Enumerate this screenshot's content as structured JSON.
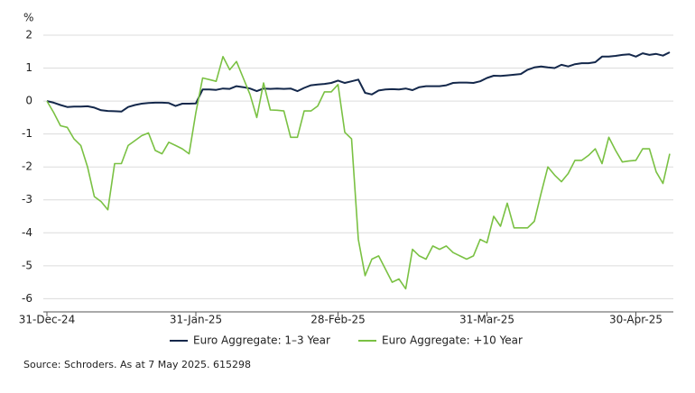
{
  "chart_data": {
    "type": "line",
    "y_unit_label": "%",
    "categories": [
      "31-Dec-24",
      null,
      null,
      null,
      null,
      null,
      null,
      null,
      null,
      null,
      null,
      null,
      null,
      null,
      null,
      null,
      null,
      null,
      null,
      null,
      null,
      null,
      "31-Jan-25",
      null,
      null,
      null,
      null,
      null,
      null,
      null,
      null,
      null,
      null,
      null,
      null,
      null,
      null,
      null,
      null,
      null,
      null,
      null,
      null,
      "28-Feb-25",
      null,
      null,
      null,
      null,
      null,
      null,
      null,
      null,
      null,
      null,
      null,
      null,
      null,
      null,
      null,
      null,
      null,
      null,
      null,
      null,
      null,
      "31-Mar-25",
      null,
      null,
      null,
      null,
      null,
      null,
      null,
      null,
      null,
      null,
      null,
      null,
      null,
      null,
      null,
      null,
      null,
      null,
      null,
      null,
      null,
      "30-Apr-25",
      null,
      null,
      null,
      null,
      null
    ],
    "series": [
      {
        "name": "Euro Aggregate: 1–3 Year",
        "color": "#14284b",
        "values": [
          0,
          -0.05,
          -0.12,
          -0.18,
          -0.17,
          -0.17,
          -0.16,
          -0.2,
          -0.28,
          -0.3,
          -0.31,
          -0.32,
          -0.18,
          -0.12,
          -0.08,
          -0.06,
          -0.05,
          -0.05,
          -0.06,
          -0.15,
          -0.08,
          -0.08,
          -0.07,
          0.35,
          0.35,
          0.34,
          0.38,
          0.37,
          0.45,
          0.42,
          0.38,
          0.3,
          0.38,
          0.37,
          0.38,
          0.37,
          0.38,
          0.3,
          0.4,
          0.48,
          0.5,
          0.52,
          0.55,
          0.62,
          0.55,
          0.6,
          0.65,
          0.25,
          0.2,
          0.32,
          0.35,
          0.36,
          0.35,
          0.38,
          0.33,
          0.42,
          0.45,
          0.45,
          0.45,
          0.48,
          0.55,
          0.56,
          0.56,
          0.55,
          0.6,
          0.7,
          0.77,
          0.76,
          0.78,
          0.8,
          0.82,
          0.95,
          1.02,
          1.05,
          1.02,
          1.0,
          1.1,
          1.05,
          1.12,
          1.15,
          1.15,
          1.18,
          1.35,
          1.35,
          1.37,
          1.4,
          1.42,
          1.35,
          1.45,
          1.4,
          1.43,
          1.38,
          1.48
        ]
      },
      {
        "name": "Euro Aggregate: +10 Year",
        "color": "#7ac143",
        "values": [
          0,
          -0.35,
          -0.75,
          -0.8,
          -1.15,
          -1.35,
          -2.0,
          -2.9,
          -3.05,
          -3.3,
          -1.9,
          -1.9,
          -1.35,
          -1.2,
          -1.05,
          -0.97,
          -1.5,
          -1.6,
          -1.25,
          -1.35,
          -1.45,
          -1.6,
          -0.35,
          0.7,
          0.65,
          0.6,
          1.35,
          0.95,
          1.2,
          0.7,
          0.2,
          -0.5,
          0.55,
          -0.27,
          -0.28,
          -0.3,
          -1.1,
          -1.1,
          -0.3,
          -0.3,
          -0.15,
          0.28,
          0.28,
          0.5,
          -0.95,
          -1.15,
          -4.2,
          -5.3,
          -4.8,
          -4.7,
          -5.1,
          -5.5,
          -5.4,
          -5.7,
          -4.5,
          -4.7,
          -4.8,
          -4.4,
          -4.5,
          -4.4,
          -4.6,
          -4.7,
          -4.8,
          -4.7,
          -4.2,
          -4.3,
          -3.5,
          -3.8,
          -3.1,
          -3.85,
          -3.85,
          -3.85,
          -3.65,
          -2.8,
          -2.0,
          -2.25,
          -2.45,
          -2.2,
          -1.8,
          -1.8,
          -1.65,
          -1.45,
          -1.9,
          -1.1,
          -1.5,
          -1.85,
          -1.82,
          -1.8,
          -1.45,
          -1.45,
          -2.15,
          -2.5,
          -1.6
        ]
      }
    ],
    "ylim": [
      -6.4,
      2
    ],
    "yticks": [
      2,
      1,
      0,
      -1,
      -2,
      -3,
      -4,
      -5,
      -6
    ],
    "grid": true,
    "legend": "bottom",
    "source": "Source: Schroders. As at 7 May 2025. 615298"
  }
}
